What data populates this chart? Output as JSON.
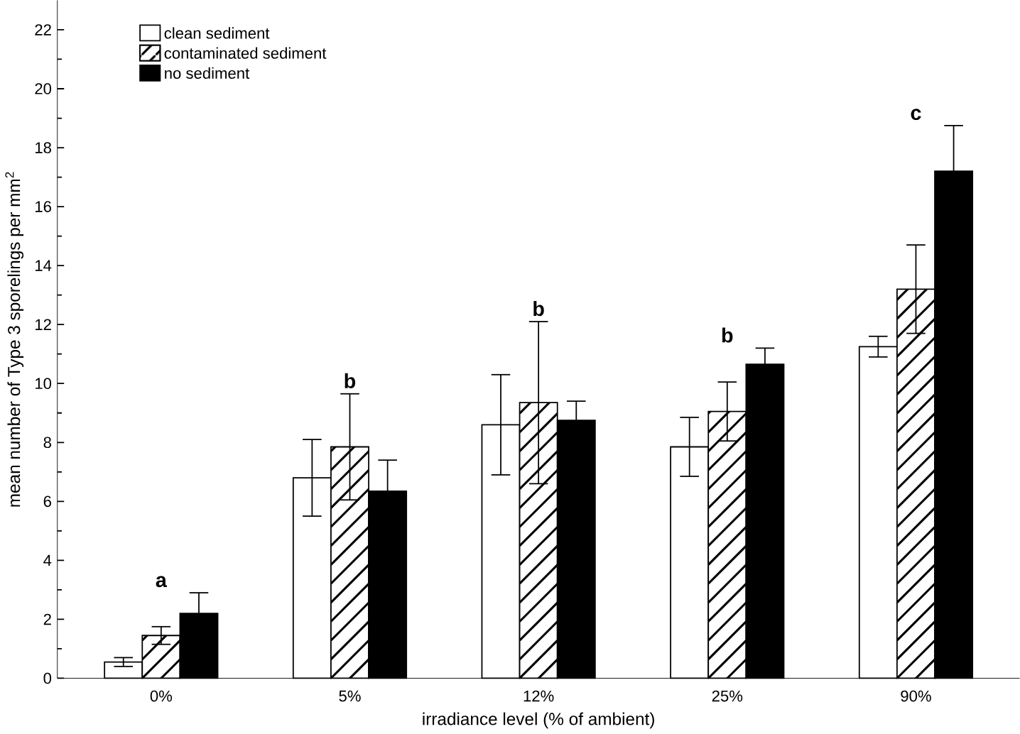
{
  "chart_data": {
    "type": "bar",
    "xlabel": "irradiance level (% of ambient)",
    "ylabel": "mean number of Type 3 sporelings per mm$^{2}$",
    "categories": [
      "0%",
      "5%",
      "12%",
      "25%",
      "90%"
    ],
    "series": [
      {
        "name": "clean sediment",
        "color": "#ffffff",
        "values": [
          0.55,
          6.8,
          8.6,
          7.85,
          11.25
        ],
        "errors": [
          0.15,
          1.3,
          1.7,
          1.0,
          0.35
        ]
      },
      {
        "name": "contaminated sediment",
        "color": "#ffffff",
        "values": [
          1.45,
          7.85,
          9.35,
          9.05,
          13.2
        ],
        "errors": [
          0.3,
          1.8,
          2.75,
          1.0,
          1.5
        ]
      },
      {
        "name": "no sediment",
        "color": "#000000",
        "values": [
          2.2,
          6.35,
          8.75,
          10.65,
          17.2
        ],
        "errors": [
          0.7,
          1.05,
          0.65,
          0.55,
          1.55
        ]
      }
    ],
    "ylim": [
      0,
      23
    ],
    "yticks": [
      0,
      2,
      4,
      6,
      8,
      10,
      12,
      14,
      16,
      18,
      20,
      22
    ],
    "legend": "top left",
    "annotations": [
      "a",
      "b",
      "b",
      "b",
      "c"
    ]
  }
}
